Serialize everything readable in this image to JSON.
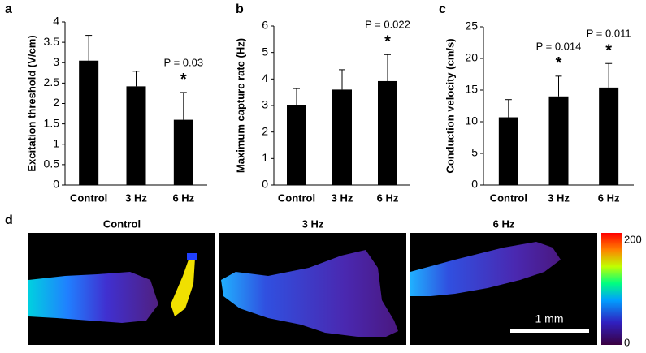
{
  "chart_data": [
    {
      "type": "bar",
      "panel": "a",
      "y_label": "Excitation threshold (V/cm)",
      "categories": [
        "Control",
        "3 Hz",
        "6 Hz"
      ],
      "values": [
        3.05,
        2.42,
        1.6
      ],
      "errors": [
        0.62,
        0.37,
        0.67
      ],
      "color": "#000000",
      "ylim": [
        0,
        4
      ],
      "yticks": [
        0,
        0.5,
        1,
        1.5,
        2,
        2.5,
        3,
        3.5,
        4
      ],
      "p_labels": [
        null,
        null,
        "P = 0.03"
      ],
      "significance": [
        null,
        null,
        "*"
      ]
    },
    {
      "type": "bar",
      "panel": "b",
      "y_label": "Maximum capture rate (Hz)",
      "categories": [
        "Control",
        "3 Hz",
        "6 Hz"
      ],
      "values": [
        3.02,
        3.6,
        3.92
      ],
      "errors": [
        0.62,
        0.75,
        1.0
      ],
      "color": "#000000",
      "ylim": [
        0,
        6
      ],
      "yticks": [
        0,
        1,
        2,
        3,
        4,
        5,
        6
      ],
      "p_labels": [
        null,
        null,
        "P = 0.022"
      ],
      "significance": [
        null,
        null,
        "*"
      ]
    },
    {
      "type": "bar",
      "panel": "c",
      "y_label": "Conduction velocity (cm/s)",
      "categories": [
        "Control",
        "3 Hz",
        "6 Hz"
      ],
      "values": [
        10.7,
        14.0,
        15.4
      ],
      "errors": [
        2.8,
        3.2,
        3.8
      ],
      "color": "#000000",
      "ylim": [
        0,
        25
      ],
      "yticks": [
        0,
        5,
        10,
        15,
        20,
        25
      ],
      "p_labels": [
        null,
        "P = 0.014",
        "P = 0.011"
      ],
      "significance": [
        null,
        "*",
        "*"
      ]
    }
  ],
  "panel_d": {
    "panel": "d",
    "titles": [
      "Control",
      "3 Hz",
      "6 Hz"
    ],
    "colorbar_ticks": [
      200,
      0
    ],
    "scale_bar": "1 mm"
  }
}
